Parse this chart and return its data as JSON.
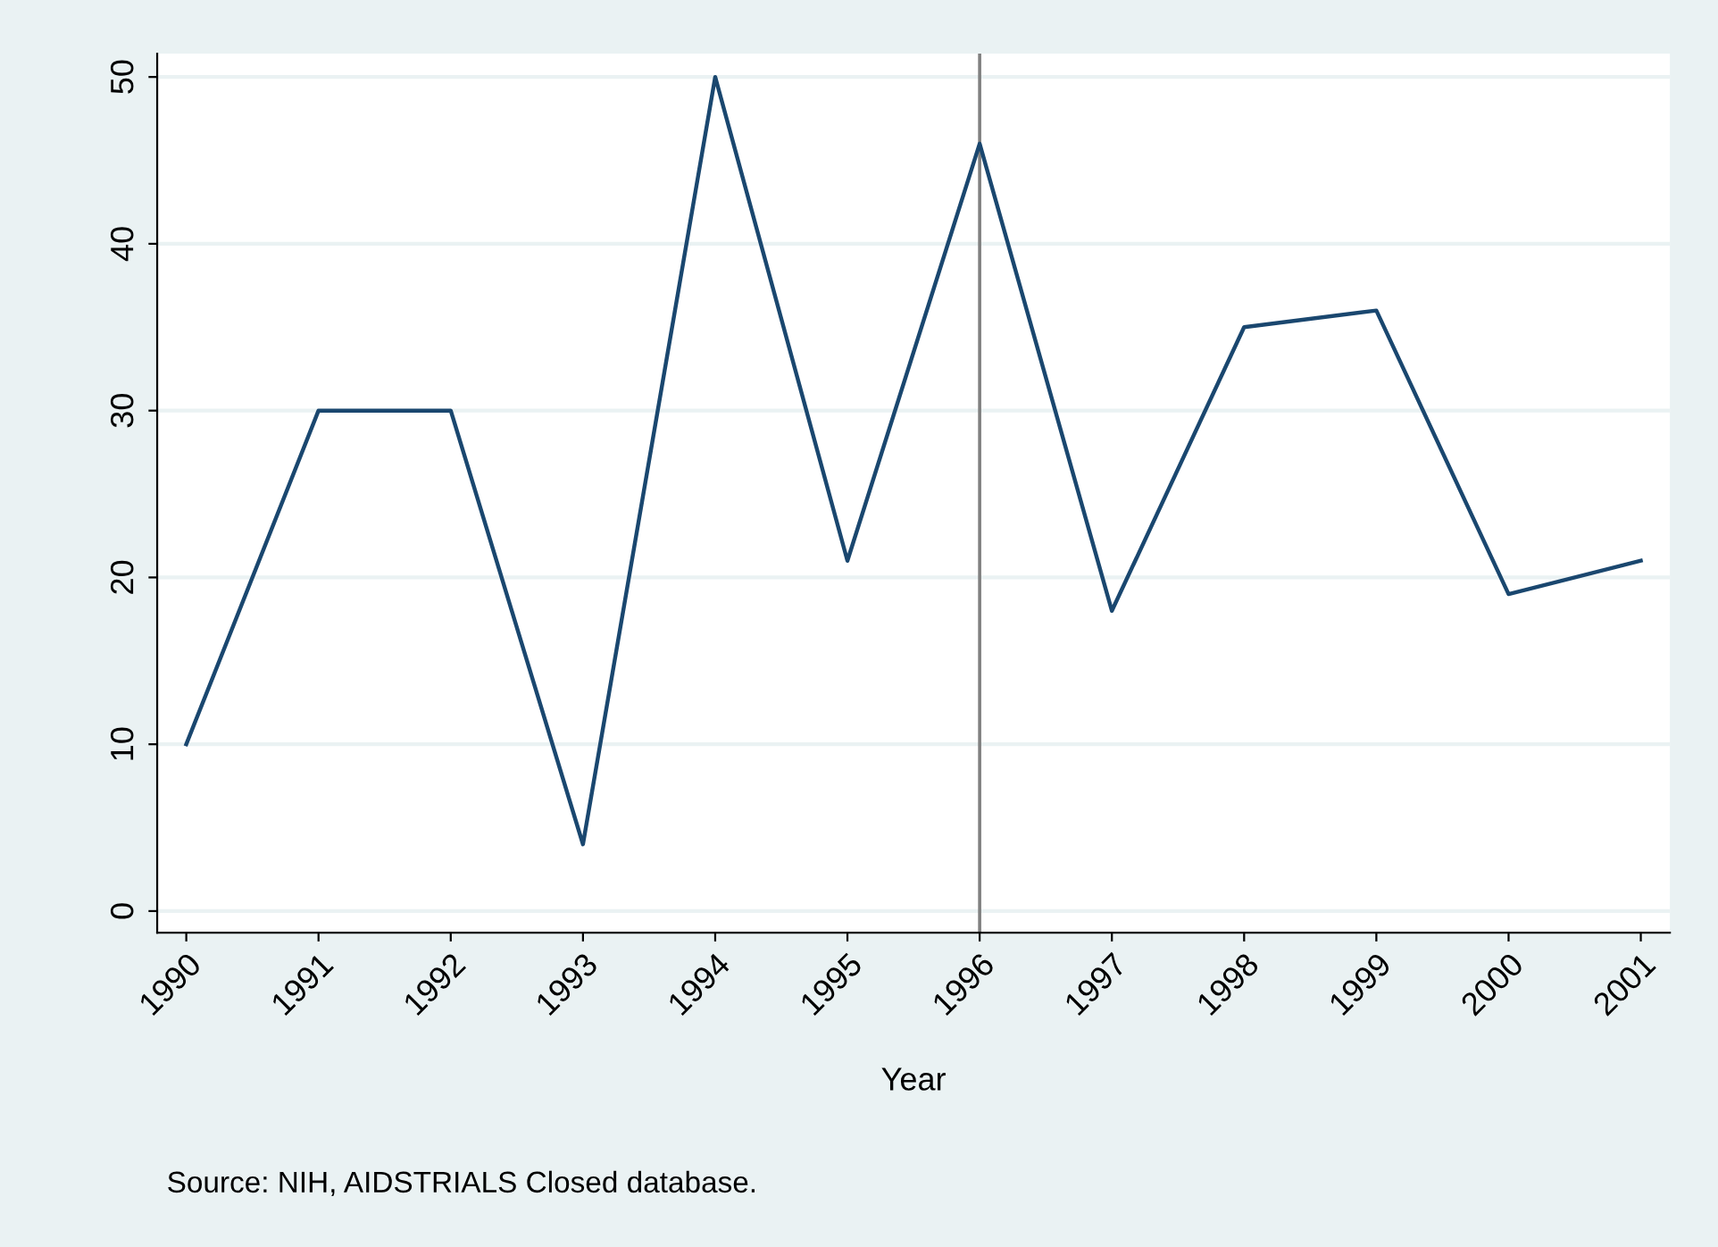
{
  "chart_data": {
    "type": "line",
    "xlabel": "Year",
    "x": [
      1990,
      1991,
      1992,
      1993,
      1994,
      1995,
      1996,
      1997,
      1998,
      1999,
      2000,
      2001
    ],
    "series": [
      {
        "color": "#1a476f",
        "values": [
          10,
          30,
          30,
          4,
          50,
          21,
          46,
          18,
          35,
          36,
          19,
          21
        ]
      }
    ],
    "xlim": [
      1989.78,
      2001.22
    ],
    "xticks": [
      1990,
      1991,
      1992,
      1993,
      1994,
      1995,
      1996,
      1997,
      1998,
      1999,
      2000,
      2001
    ],
    "ylim": [
      -1.3,
      51.4
    ],
    "yticks": [
      0,
      10,
      20,
      30,
      40,
      50
    ],
    "grid": "y",
    "marker": "none",
    "line_style": "solid",
    "legend": false,
    "ref_lines": [
      {
        "axis": "x",
        "value": 1996,
        "color": "#808080"
      }
    ],
    "annotations": [
      "Source: NIH, AIDSTRIALS Closed database."
    ]
  }
}
